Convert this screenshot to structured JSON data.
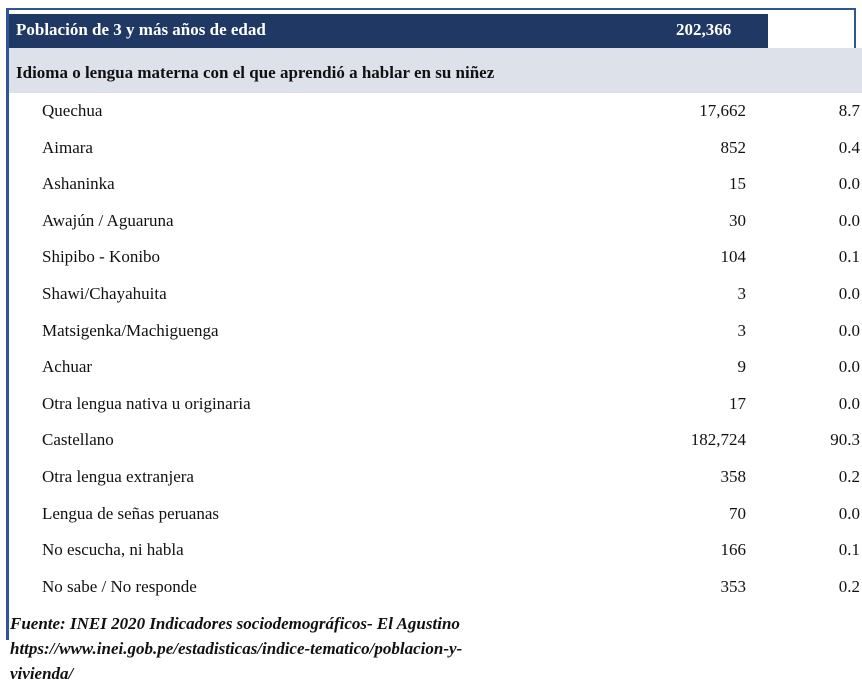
{
  "header": {
    "label": "Población de 3 y más años de edad",
    "total": "202,366"
  },
  "section_title": "Idioma o lengua materna con el que aprendió a hablar en su niñez",
  "table": {
    "rows": [
      [
        "Quechua",
        "17,662",
        "8.7"
      ],
      [
        "Aimara",
        "852",
        "0.4"
      ],
      [
        "Ashaninka",
        "15",
        "0.0"
      ],
      [
        "Awajún / Aguaruna",
        "30",
        "0.0"
      ],
      [
        "Shipibo - Konibo",
        "104",
        "0.1"
      ],
      [
        "Shawi/Chayahuita",
        "3",
        "0.0"
      ],
      [
        "Matsigenka/Machiguenga",
        "3",
        "0.0"
      ],
      [
        "Achuar",
        "9",
        "0.0"
      ],
      [
        "Otra lengua nativa u originaria",
        "17",
        "0.0"
      ],
      [
        "Castellano",
        "182,724",
        "90.3"
      ],
      [
        "Otra lengua extranjera",
        "358",
        "0.2"
      ],
      [
        "Lengua de señas peruanas",
        "70",
        "0.0"
      ],
      [
        "No escucha, ni habla",
        "166",
        "0.1"
      ],
      [
        "No sabe / No responde",
        "353",
        "0.2"
      ]
    ]
  },
  "source": [
    "Fuente: INEI 2020 Indicadores sociodemográficos- El Agustino",
    "https://www.inei.gob.pe/estadisticas/indice-tematico/poblacion-y-",
    "vivienda/"
  ]
}
